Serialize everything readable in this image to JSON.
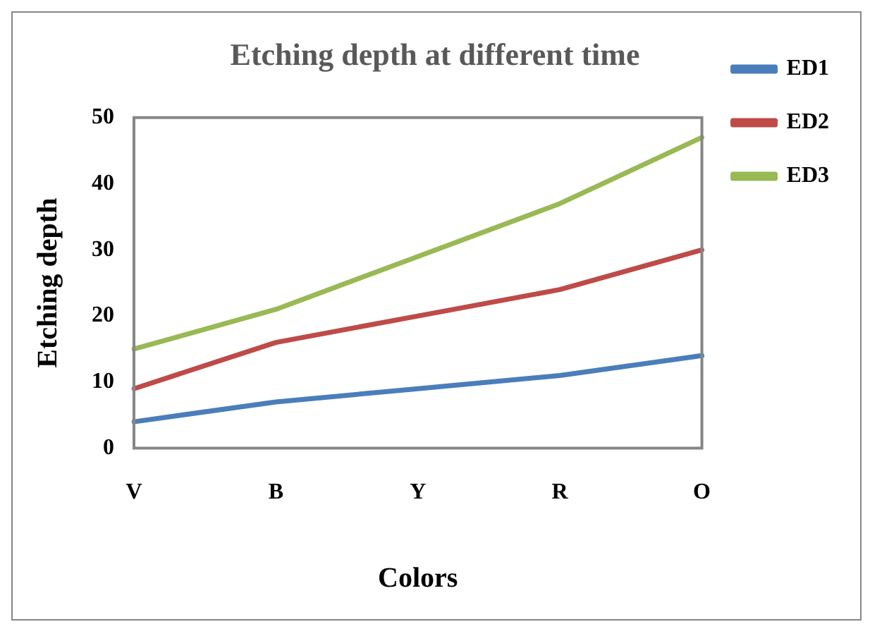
{
  "chart_data": {
    "type": "line",
    "title": "Etching depth at different time",
    "xlabel": "Colors",
    "ylabel": "Etching depth",
    "categories": [
      "V",
      "B",
      "Y",
      "R",
      "O"
    ],
    "series": [
      {
        "name": "ED1",
        "color": "#4a7ebb",
        "values": [
          4,
          7,
          9,
          11,
          14
        ]
      },
      {
        "name": "ED2",
        "color": "#be4b48",
        "values": [
          9,
          16,
          20,
          24,
          30
        ]
      },
      {
        "name": "ED3",
        "color": "#98b954",
        "values": [
          15,
          21,
          29,
          37,
          47
        ]
      }
    ],
    "ylim": [
      0,
      50
    ],
    "yticks": [
      0,
      10,
      20,
      30,
      40,
      50
    ],
    "grid": false,
    "legend": "right",
    "marker": "none",
    "line_style": "solid"
  }
}
